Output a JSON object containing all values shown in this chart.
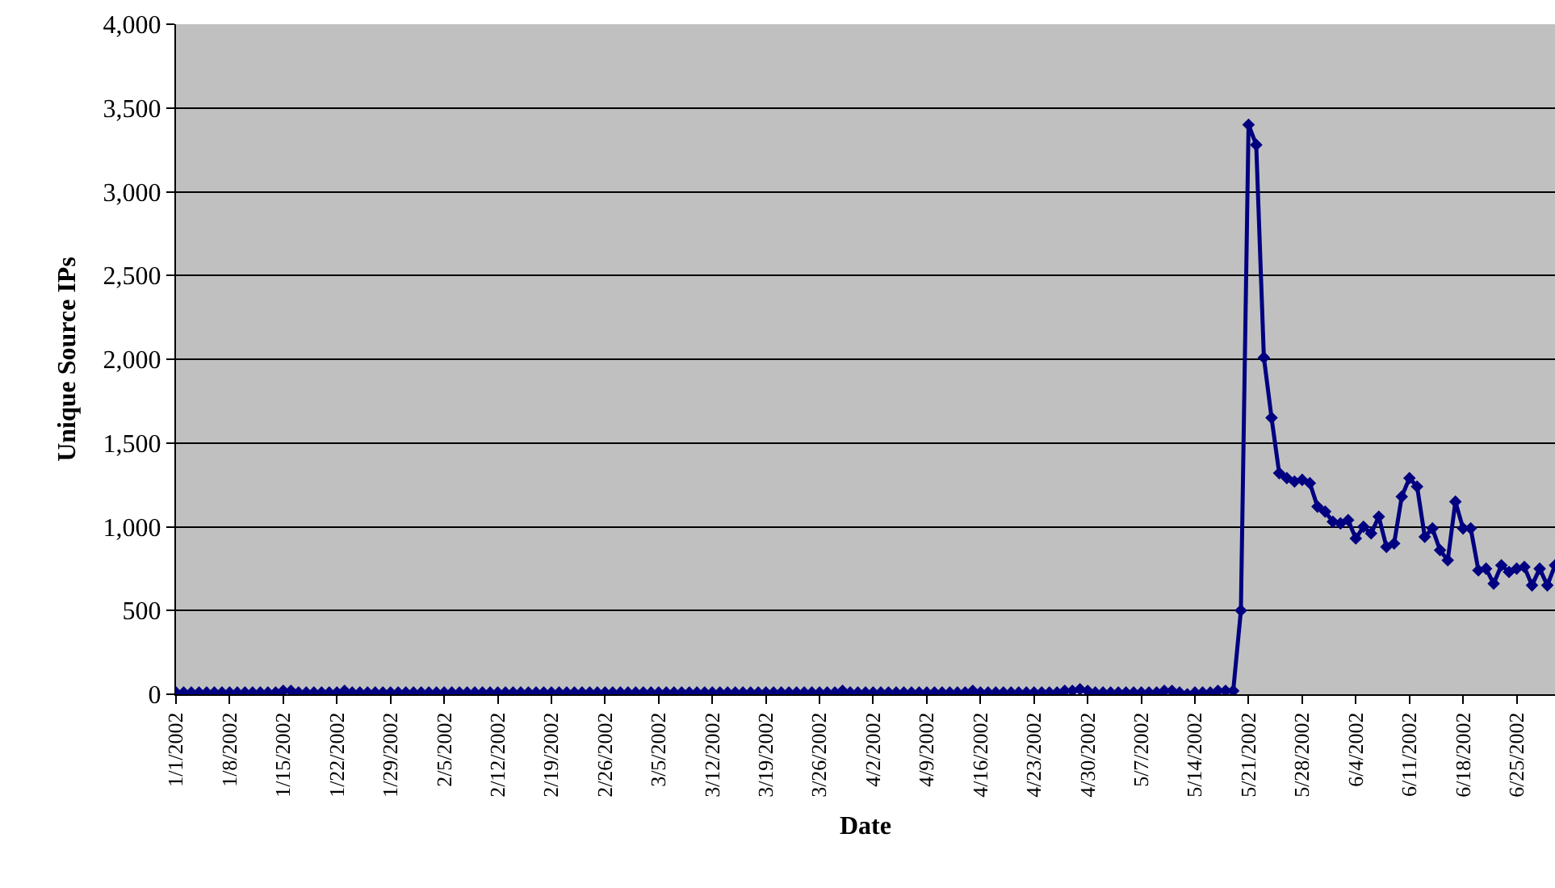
{
  "chart_data": {
    "type": "line",
    "xlabel": "Date",
    "ylabel": "Unique Source IPs",
    "x": [
      "2002-01-01",
      "2002-01-02",
      "2002-01-03",
      "2002-01-04",
      "2002-01-05",
      "2002-01-06",
      "2002-01-07",
      "2002-01-08",
      "2002-01-09",
      "2002-01-10",
      "2002-01-11",
      "2002-01-12",
      "2002-01-13",
      "2002-01-14",
      "2002-01-15",
      "2002-01-16",
      "2002-01-17",
      "2002-01-18",
      "2002-01-19",
      "2002-01-20",
      "2002-01-21",
      "2002-01-22",
      "2002-01-23",
      "2002-01-24",
      "2002-01-25",
      "2002-01-26",
      "2002-01-27",
      "2002-01-28",
      "2002-01-29",
      "2002-01-30",
      "2002-01-31",
      "2002-02-01",
      "2002-02-02",
      "2002-02-03",
      "2002-02-04",
      "2002-02-05",
      "2002-02-06",
      "2002-02-07",
      "2002-02-08",
      "2002-02-09",
      "2002-02-10",
      "2002-02-11",
      "2002-02-12",
      "2002-02-13",
      "2002-02-14",
      "2002-02-15",
      "2002-02-16",
      "2002-02-17",
      "2002-02-18",
      "2002-02-19",
      "2002-02-20",
      "2002-02-21",
      "2002-02-22",
      "2002-02-23",
      "2002-02-24",
      "2002-02-25",
      "2002-02-26",
      "2002-02-27",
      "2002-02-28",
      "2002-03-01",
      "2002-03-02",
      "2002-03-03",
      "2002-03-04",
      "2002-03-05",
      "2002-03-06",
      "2002-03-07",
      "2002-03-08",
      "2002-03-09",
      "2002-03-10",
      "2002-03-11",
      "2002-03-12",
      "2002-03-13",
      "2002-03-14",
      "2002-03-15",
      "2002-03-16",
      "2002-03-17",
      "2002-03-18",
      "2002-03-19",
      "2002-03-20",
      "2002-03-21",
      "2002-03-22",
      "2002-03-23",
      "2002-03-24",
      "2002-03-25",
      "2002-03-26",
      "2002-03-27",
      "2002-03-28",
      "2002-03-29",
      "2002-03-30",
      "2002-03-31",
      "2002-04-01",
      "2002-04-02",
      "2002-04-03",
      "2002-04-04",
      "2002-04-05",
      "2002-04-06",
      "2002-04-07",
      "2002-04-08",
      "2002-04-09",
      "2002-04-10",
      "2002-04-11",
      "2002-04-12",
      "2002-04-13",
      "2002-04-14",
      "2002-04-15",
      "2002-04-16",
      "2002-04-17",
      "2002-04-18",
      "2002-04-19",
      "2002-04-20",
      "2002-04-21",
      "2002-04-22",
      "2002-04-23",
      "2002-04-24",
      "2002-04-25",
      "2002-04-26",
      "2002-04-27",
      "2002-04-28",
      "2002-04-29",
      "2002-04-30",
      "2002-05-01",
      "2002-05-02",
      "2002-05-03",
      "2002-05-04",
      "2002-05-05",
      "2002-05-06",
      "2002-05-07",
      "2002-05-08",
      "2002-05-09",
      "2002-05-10",
      "2002-05-11",
      "2002-05-12",
      "2002-05-13",
      "2002-05-14",
      "2002-05-15",
      "2002-05-16",
      "2002-05-17",
      "2002-05-18",
      "2002-05-19",
      "2002-05-20",
      "2002-05-21",
      "2002-05-22",
      "2002-05-23",
      "2002-05-24",
      "2002-05-25",
      "2002-05-26",
      "2002-05-27",
      "2002-05-28",
      "2002-05-29",
      "2002-05-30",
      "2002-05-31",
      "2002-06-01",
      "2002-06-02",
      "2002-06-03",
      "2002-06-04",
      "2002-06-05",
      "2002-06-06",
      "2002-06-07",
      "2002-06-08",
      "2002-06-09",
      "2002-06-10",
      "2002-06-11",
      "2002-06-12",
      "2002-06-13",
      "2002-06-14",
      "2002-06-15",
      "2002-06-16",
      "2002-06-17",
      "2002-06-18",
      "2002-06-19",
      "2002-06-20",
      "2002-06-21",
      "2002-06-22",
      "2002-06-23",
      "2002-06-24",
      "2002-06-25",
      "2002-06-26",
      "2002-06-27",
      "2002-06-28",
      "2002-06-29",
      "2002-06-30"
    ],
    "series": [
      {
        "color": "#000080",
        "values": [
          10,
          10,
          10,
          10,
          10,
          10,
          10,
          10,
          10,
          10,
          10,
          10,
          10,
          10,
          20,
          20,
          10,
          10,
          10,
          10,
          10,
          10,
          20,
          10,
          10,
          10,
          10,
          10,
          10,
          10,
          10,
          10,
          10,
          10,
          10,
          10,
          10,
          10,
          10,
          10,
          10,
          10,
          10,
          10,
          10,
          10,
          10,
          10,
          10,
          10,
          10,
          10,
          10,
          10,
          10,
          10,
          10,
          10,
          10,
          10,
          10,
          10,
          10,
          10,
          10,
          10,
          10,
          10,
          10,
          10,
          10,
          10,
          10,
          10,
          10,
          10,
          10,
          10,
          10,
          10,
          10,
          10,
          10,
          10,
          10,
          10,
          10,
          20,
          10,
          10,
          10,
          10,
          10,
          10,
          10,
          10,
          10,
          10,
          10,
          10,
          10,
          10,
          10,
          10,
          20,
          10,
          10,
          10,
          10,
          10,
          10,
          10,
          10,
          10,
          10,
          10,
          20,
          20,
          30,
          20,
          10,
          10,
          10,
          10,
          10,
          10,
          10,
          10,
          10,
          20,
          20,
          10,
          0,
          10,
          10,
          10,
          20,
          20,
          20,
          500,
          3400,
          3280,
          2010,
          1650,
          1320,
          1290,
          1270,
          1280,
          1260,
          1120,
          1090,
          1030,
          1020,
          1040,
          930,
          1000,
          960,
          1060,
          880,
          900,
          1180,
          1290,
          1240,
          940,
          990,
          860,
          800,
          1150,
          990,
          990,
          740,
          750,
          660,
          770,
          730,
          750,
          760,
          650,
          750,
          650,
          770
        ]
      }
    ],
    "xlim": [
      "2002-01-01",
      "2002-06-30"
    ],
    "xticks": [
      {
        "value": "2002-01-01",
        "label": "1/1/2002"
      },
      {
        "value": "2002-01-08",
        "label": "1/8/2002"
      },
      {
        "value": "2002-01-15",
        "label": "1/15/2002"
      },
      {
        "value": "2002-01-22",
        "label": "1/22/2002"
      },
      {
        "value": "2002-01-29",
        "label": "1/29/2002"
      },
      {
        "value": "2002-02-05",
        "label": "2/5/2002"
      },
      {
        "value": "2002-02-12",
        "label": "2/12/2002"
      },
      {
        "value": "2002-02-19",
        "label": "2/19/2002"
      },
      {
        "value": "2002-02-26",
        "label": "2/26/2002"
      },
      {
        "value": "2002-03-05",
        "label": "3/5/2002"
      },
      {
        "value": "2002-03-12",
        "label": "3/12/2002"
      },
      {
        "value": "2002-03-19",
        "label": "3/19/2002"
      },
      {
        "value": "2002-03-26",
        "label": "3/26/2002"
      },
      {
        "value": "2002-04-02",
        "label": "4/2/2002"
      },
      {
        "value": "2002-04-09",
        "label": "4/9/2002"
      },
      {
        "value": "2002-04-16",
        "label": "4/16/2002"
      },
      {
        "value": "2002-04-23",
        "label": "4/23/2002"
      },
      {
        "value": "2002-04-30",
        "label": "4/30/2002"
      },
      {
        "value": "2002-05-07",
        "label": "5/7/2002"
      },
      {
        "value": "2002-05-14",
        "label": "5/14/2002"
      },
      {
        "value": "2002-05-21",
        "label": "5/21/2002"
      },
      {
        "value": "2002-05-28",
        "label": "5/28/2002"
      },
      {
        "value": "2002-06-04",
        "label": "6/4/2002"
      },
      {
        "value": "2002-06-11",
        "label": "6/11/2002"
      },
      {
        "value": "2002-06-18",
        "label": "6/18/2002"
      },
      {
        "value": "2002-06-25",
        "label": "6/25/2002"
      }
    ],
    "ylim": [
      0,
      4000
    ],
    "yticks": [
      0,
      500,
      {
        "value": 1000,
        "label": "1,000"
      },
      {
        "value": 1500,
        "label": "1,500"
      },
      {
        "value": 2000,
        "label": "2,000"
      },
      {
        "value": 2500,
        "label": "2,500"
      },
      {
        "value": 3000,
        "label": "3,000"
      },
      {
        "value": 3500,
        "label": "3,500"
      },
      {
        "value": 4000,
        "label": "4,000"
      }
    ],
    "grid": "y",
    "marker": "diamond",
    "line_style": "solid"
  }
}
